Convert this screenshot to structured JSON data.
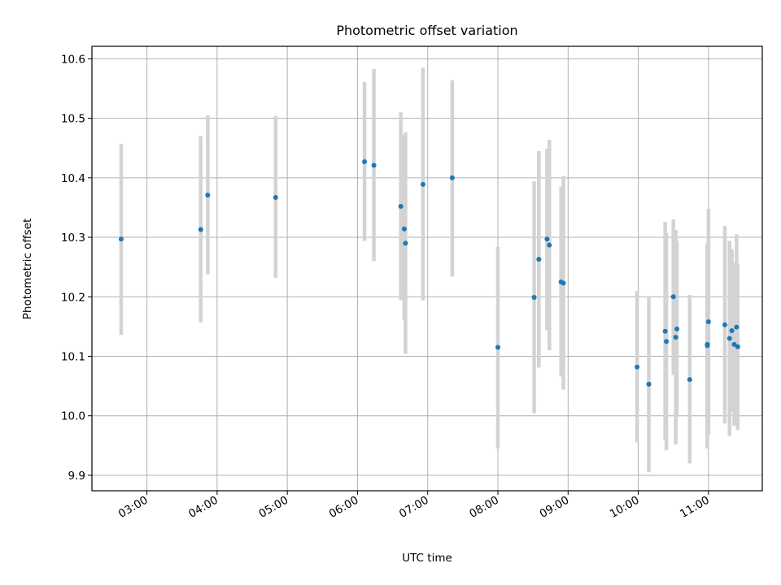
{
  "chart_data": {
    "type": "scatter",
    "title": "Photometric offset variation",
    "xlabel": "UTC time",
    "ylabel": "Photometric offset",
    "x_tick_labels": [
      "03:00",
      "04:00",
      "05:00",
      "06:00",
      "07:00",
      "08:00",
      "09:00",
      "10:00",
      "11:00"
    ],
    "y_tick_labels": [
      "9.9",
      "10.0",
      "10.1",
      "10.2",
      "10.3",
      "10.4",
      "10.5",
      "10.6"
    ],
    "xlim": [
      "02:13",
      "11:46"
    ],
    "ylim": [
      9.874,
      10.621
    ],
    "grid": true,
    "colors": {
      "points": "#1f77b4",
      "errorbars": "#d3d3d3",
      "grid": "#b0b0b0"
    },
    "points": [
      {
        "t": "02:38",
        "y": 10.297,
        "lo": 10.136,
        "hi": 10.457
      },
      {
        "t": "03:46",
        "y": 10.313,
        "lo": 10.157,
        "hi": 10.47
      },
      {
        "t": "03:52",
        "y": 10.371,
        "lo": 10.238,
        "hi": 10.505
      },
      {
        "t": "04:50",
        "y": 10.367,
        "lo": 10.232,
        "hi": 10.504
      },
      {
        "t": "06:06",
        "y": 10.427,
        "lo": 10.294,
        "hi": 10.561
      },
      {
        "t": "06:14",
        "y": 10.421,
        "lo": 10.26,
        "hi": 10.583
      },
      {
        "t": "06:37",
        "y": 10.352,
        "lo": 10.194,
        "hi": 10.51
      },
      {
        "t": "06:40",
        "y": 10.314,
        "lo": 10.161,
        "hi": 10.472
      },
      {
        "t": "06:41",
        "y": 10.29,
        "lo": 10.104,
        "hi": 10.476
      },
      {
        "t": "06:56",
        "y": 10.389,
        "lo": 10.194,
        "hi": 10.585
      },
      {
        "t": "07:21",
        "y": 10.4,
        "lo": 10.234,
        "hi": 10.564
      },
      {
        "t": "08:00",
        "y": 10.115,
        "lo": 9.945,
        "hi": 10.284
      },
      {
        "t": "08:31",
        "y": 10.199,
        "lo": 10.004,
        "hi": 10.394
      },
      {
        "t": "08:35",
        "y": 10.263,
        "lo": 10.081,
        "hi": 10.445
      },
      {
        "t": "08:42",
        "y": 10.297,
        "lo": 10.144,
        "hi": 10.449
      },
      {
        "t": "08:44",
        "y": 10.287,
        "lo": 10.11,
        "hi": 10.464
      },
      {
        "t": "08:54",
        "y": 10.225,
        "lo": 10.066,
        "hi": 10.385
      },
      {
        "t": "08:56",
        "y": 10.223,
        "lo": 10.044,
        "hi": 10.403
      },
      {
        "t": "09:59",
        "y": 10.082,
        "lo": 9.955,
        "hi": 10.21
      },
      {
        "t": "10:09",
        "y": 10.053,
        "lo": 9.905,
        "hi": 10.201
      },
      {
        "t": "10:23",
        "y": 10.142,
        "lo": 9.958,
        "hi": 10.326
      },
      {
        "t": "10:24",
        "y": 10.125,
        "lo": 9.942,
        "hi": 10.308
      },
      {
        "t": "10:30",
        "y": 10.2,
        "lo": 10.069,
        "hi": 10.33
      },
      {
        "t": "10:32",
        "y": 10.132,
        "lo": 9.952,
        "hi": 10.312
      },
      {
        "t": "10:33",
        "y": 10.146,
        "lo": 9.998,
        "hi": 10.294
      },
      {
        "t": "10:44",
        "y": 10.061,
        "lo": 9.92,
        "hi": 10.203
      },
      {
        "t": "10:59",
        "y": 10.118,
        "lo": 9.945,
        "hi": 10.29
      },
      {
        "t": "10:59",
        "y": 10.12,
        "lo": 9.955,
        "hi": 10.285
      },
      {
        "t": "11:00",
        "y": 10.158,
        "lo": 9.968,
        "hi": 10.348
      },
      {
        "t": "11:14",
        "y": 10.153,
        "lo": 9.987,
        "hi": 10.319
      },
      {
        "t": "11:18",
        "y": 10.13,
        "lo": 9.966,
        "hi": 10.294
      },
      {
        "t": "11:20",
        "y": 10.143,
        "lo": 10.006,
        "hi": 10.28
      },
      {
        "t": "11:22",
        "y": 10.12,
        "lo": 9.983,
        "hi": 10.257
      },
      {
        "t": "11:24",
        "y": 10.149,
        "lo": 9.993,
        "hi": 10.305
      },
      {
        "t": "11:25",
        "y": 10.116,
        "lo": 9.976,
        "hi": 10.256
      }
    ]
  }
}
